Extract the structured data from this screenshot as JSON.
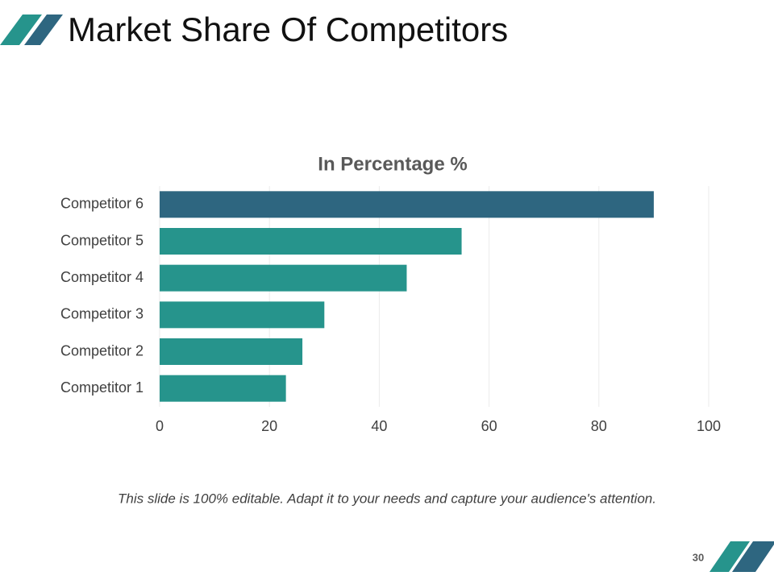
{
  "title": "Market Share Of Competitors",
  "chart_data": {
    "type": "barh",
    "title": "In Percentage %",
    "categories": [
      "Competitor 1",
      "Competitor 2",
      "Competitor 3",
      "Competitor 4",
      "Competitor 5",
      "Competitor 6"
    ],
    "values": [
      23,
      26,
      30,
      45,
      55,
      90
    ],
    "colors": [
      "#26948c",
      "#26948c",
      "#26948c",
      "#26948c",
      "#26948c",
      "#2e6680"
    ],
    "xlim": [
      0,
      100
    ],
    "xticks": [
      0,
      20,
      40,
      60,
      80,
      100
    ],
    "grid": true
  },
  "footer_text": "This slide is 100% editable. Adapt it to your needs and capture your audience's attention.",
  "page_number": 30
}
